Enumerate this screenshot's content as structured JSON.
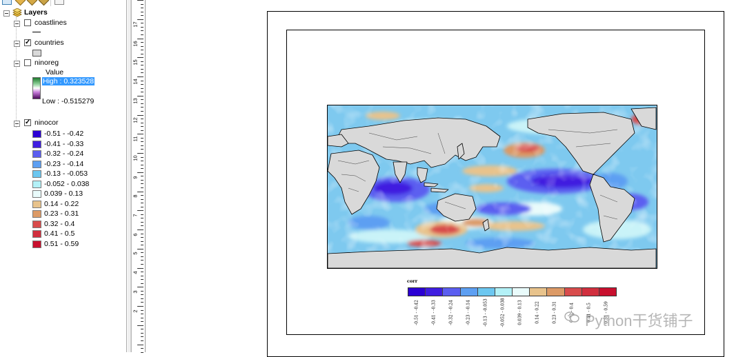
{
  "toc": {
    "root_label": "Layers",
    "layers": [
      {
        "name": "coastlines",
        "checked": false
      },
      {
        "name": "countries",
        "checked": true
      },
      {
        "name": "ninoreg",
        "checked": false,
        "value_header": "Value",
        "high_label": "High : 0.323528",
        "low_label": "Low : -0.515279"
      },
      {
        "name": "ninocor",
        "checked": true
      }
    ],
    "classes": [
      {
        "label": "-0.51 - -0.42",
        "color": "#2b00d4"
      },
      {
        "label": "-0.41 - -0.33",
        "color": "#3f1ee0"
      },
      {
        "label": "-0.32 - -0.24",
        "color": "#5b5ef0"
      },
      {
        "label": "-0.23 - -0.14",
        "color": "#5d9ff2"
      },
      {
        "label": "-0.13 - -0.053",
        "color": "#6cc7f0"
      },
      {
        "label": "-0.052 - 0.038",
        "color": "#b3f1f7"
      },
      {
        "label": "0.039 - 0.13",
        "color": "#e9fbfb"
      },
      {
        "label": "0.14 - 0.22",
        "color": "#e8c38c"
      },
      {
        "label": "0.23 - 0.31",
        "color": "#dc9a66"
      },
      {
        "label": "0.32 - 0.4",
        "color": "#d84c4c"
      },
      {
        "label": "0.41 - 0.5",
        "color": "#d12f3e"
      },
      {
        "label": "0.51 - 0.59",
        "color": "#c8102e"
      }
    ]
  },
  "ruler": {
    "labels": [
      "17",
      "16",
      "15",
      "14",
      "13",
      "12",
      "11",
      "10",
      "9",
      "8",
      "7",
      "6",
      "5",
      "4",
      "3",
      "2"
    ]
  },
  "legend_bar": {
    "title": "corr",
    "labels": [
      "-0.51 - -0.42",
      "-0.41 - -0.33",
      "-0.32 - -0.24",
      "-0.23 - -0.14",
      "-0.13 - -0.053",
      "-0.052 - 0.038",
      "0.039 - 0.13",
      "0.14 - 0.22",
      "0.23 - 0.31",
      "0.32 - 0.4",
      "0.41 - 0.5",
      "0.51 - 0.59"
    ]
  },
  "watermark": {
    "text": "Python干货铺子"
  },
  "colors": {
    "land": "#d9d9d9",
    "ocean_base": "#7ec9ef",
    "selection": "#3399ff"
  }
}
